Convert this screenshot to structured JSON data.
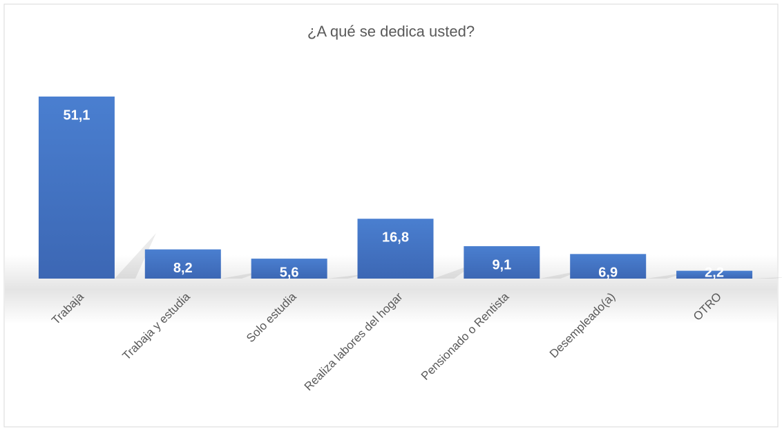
{
  "chart_data": {
    "type": "bar",
    "title": "¿A qué se dedica usted?",
    "categories": [
      "Trabaja",
      "Trabaja y estudia",
      "Solo estudia",
      "Realiza labores del hogar",
      "Pensionado o Rentista",
      "Desempleado(a)",
      "OTRO"
    ],
    "values": [
      51.1,
      8.2,
      5.6,
      16.8,
      9.1,
      6.9,
      2.2
    ],
    "value_labels": [
      "51,1",
      "8,2",
      "5,6",
      "16,8",
      "9,1",
      "6,9",
      "2,2"
    ],
    "color": "#4472c4"
  }
}
